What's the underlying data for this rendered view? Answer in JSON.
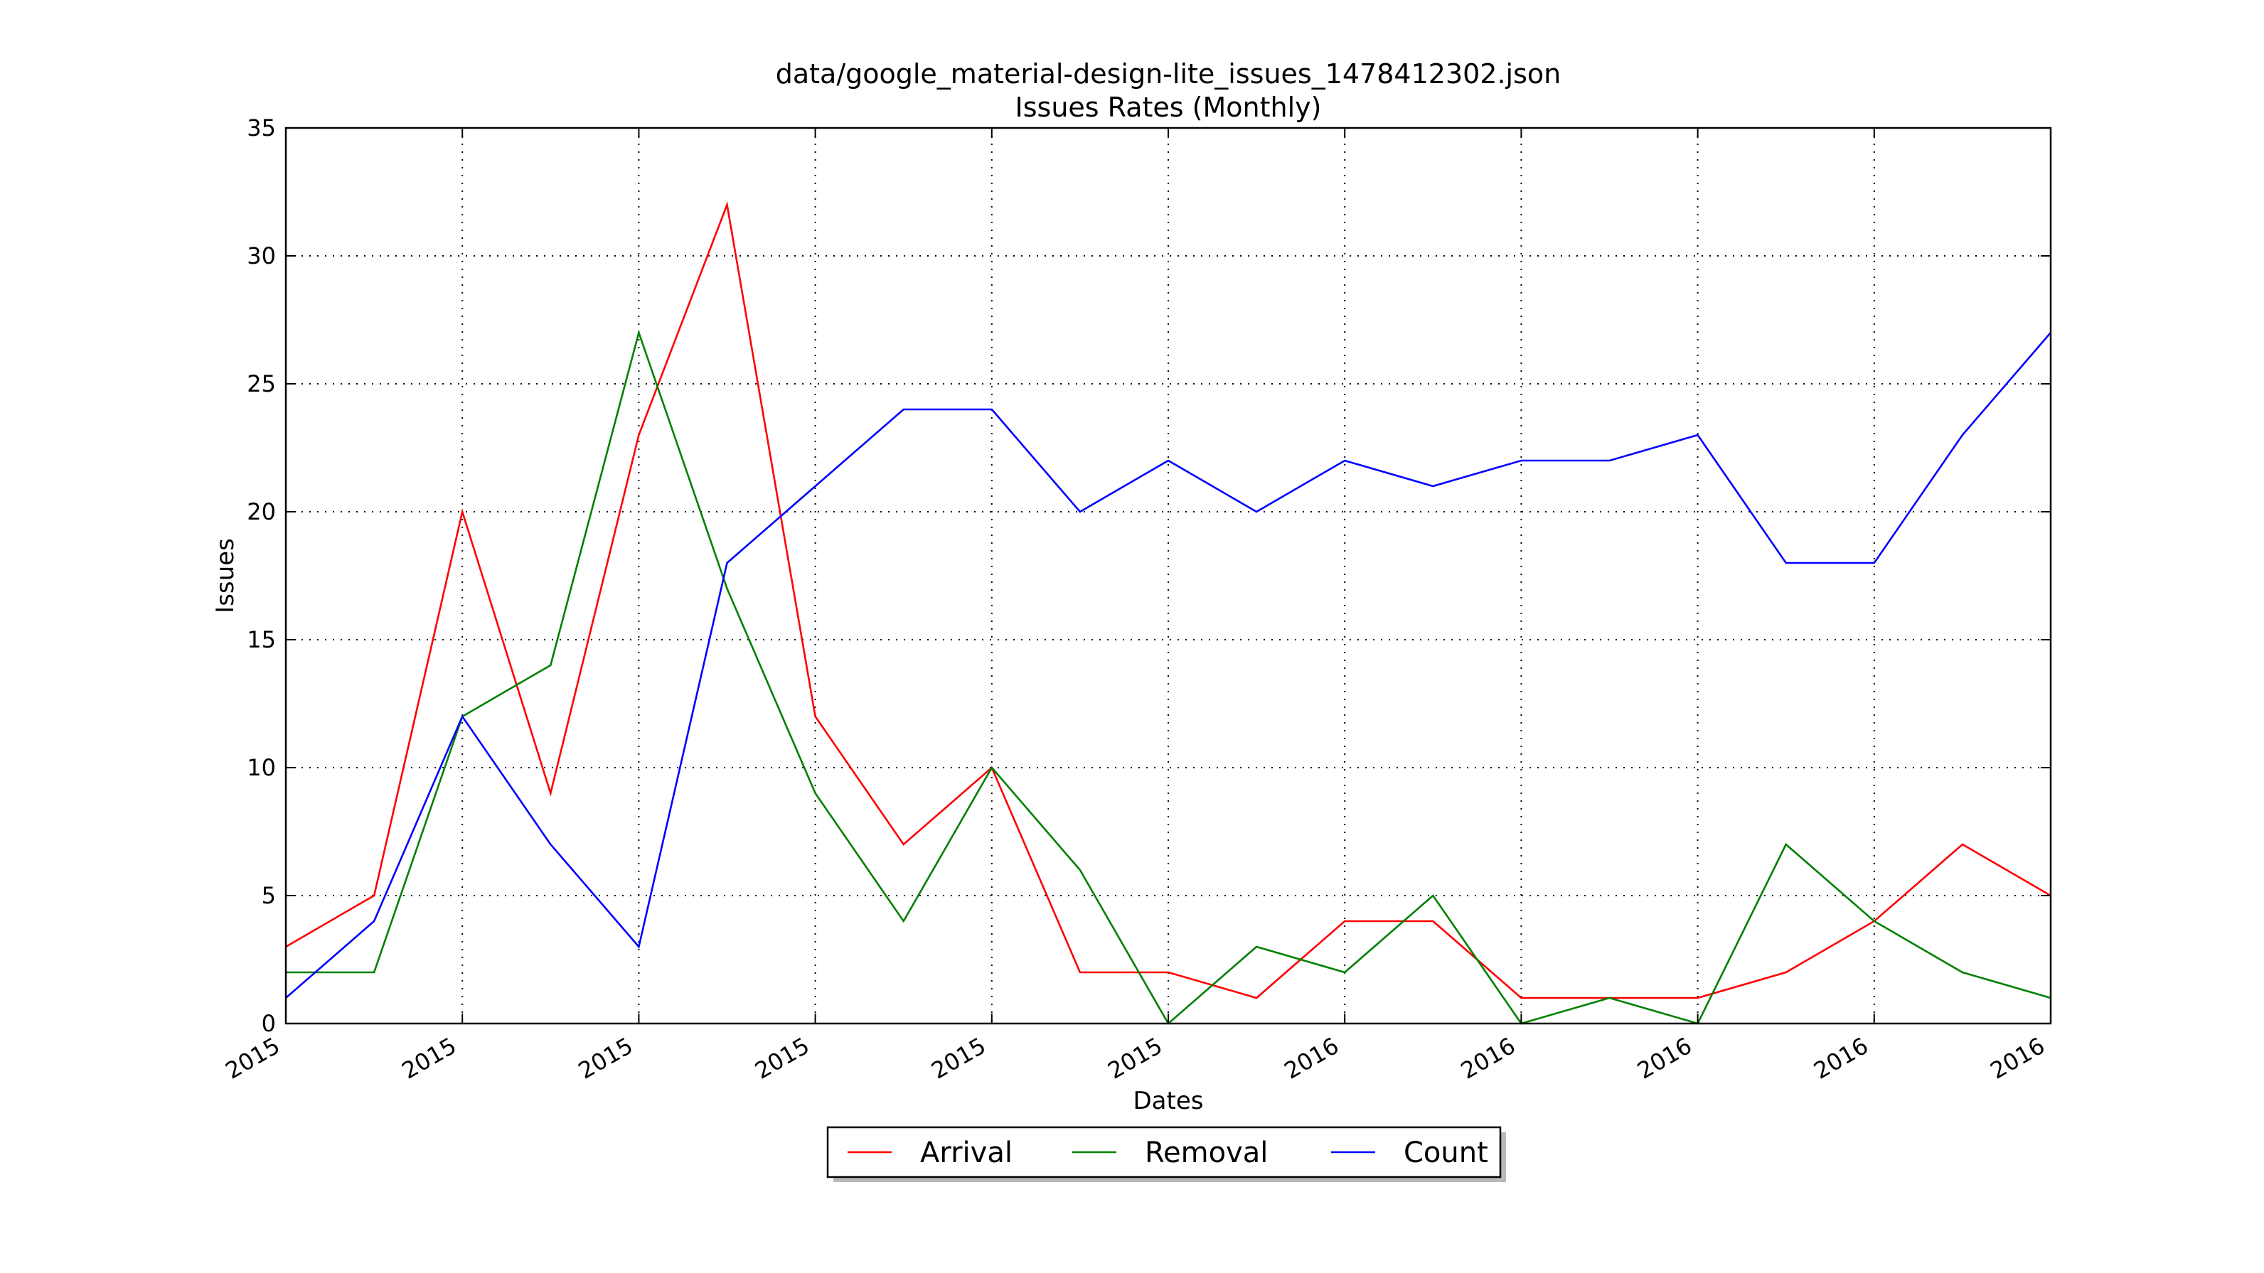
{
  "chart_data": {
    "type": "line",
    "title": "data/google_material-design-lite_issues_1478412302.json",
    "subtitle": "Issues Rates (Monthly)",
    "xlabel": "Dates",
    "ylabel": "Issues",
    "x": [
      "2015-01",
      "2015-02",
      "2015-03",
      "2015-04",
      "2015-05",
      "2015-06",
      "2015-07",
      "2015-08",
      "2015-09",
      "2015-10",
      "2015-11",
      "2015-12",
      "2016-01",
      "2016-02",
      "2016-03",
      "2016-04",
      "2016-05",
      "2016-06",
      "2016-07",
      "2016-08",
      "2016-09"
    ],
    "xticks": [
      {
        "x": "2015-01",
        "label": "2015"
      },
      {
        "x": "2015-03",
        "label": "2015"
      },
      {
        "x": "2015-05",
        "label": "2015"
      },
      {
        "x": "2015-07",
        "label": "2015"
      },
      {
        "x": "2015-09",
        "label": "2015"
      },
      {
        "x": "2015-11",
        "label": "2015"
      },
      {
        "x": "2016-01",
        "label": "2016"
      },
      {
        "x": "2016-03",
        "label": "2016"
      },
      {
        "x": "2016-05",
        "label": "2016"
      },
      {
        "x": "2016-07",
        "label": "2016"
      },
      {
        "x": "2016-09",
        "label": "2016"
      }
    ],
    "yticks": [
      0,
      5,
      10,
      15,
      20,
      25,
      30,
      35
    ],
    "ylim": [
      0,
      35
    ],
    "grid": true,
    "legend_position": "bottom-center",
    "series": [
      {
        "name": "Arrival",
        "color": "#ff0000",
        "values": [
          3,
          5,
          20,
          9,
          23,
          32,
          12,
          7,
          10,
          2,
          2,
          1,
          4,
          4,
          1,
          1,
          1,
          2,
          4,
          7,
          5
        ]
      },
      {
        "name": "Removal",
        "color": "#008000",
        "values": [
          2,
          2,
          12,
          14,
          27,
          17,
          9,
          4,
          10,
          6,
          0,
          3,
          2,
          5,
          0,
          1,
          0,
          7,
          4,
          2,
          1
        ]
      },
      {
        "name": "Count",
        "color": "#0000ff",
        "values": [
          1,
          4,
          12,
          7,
          3,
          18,
          21,
          24,
          24,
          20,
          22,
          20,
          22,
          21,
          22,
          22,
          23,
          18,
          18,
          23,
          27
        ]
      }
    ]
  }
}
